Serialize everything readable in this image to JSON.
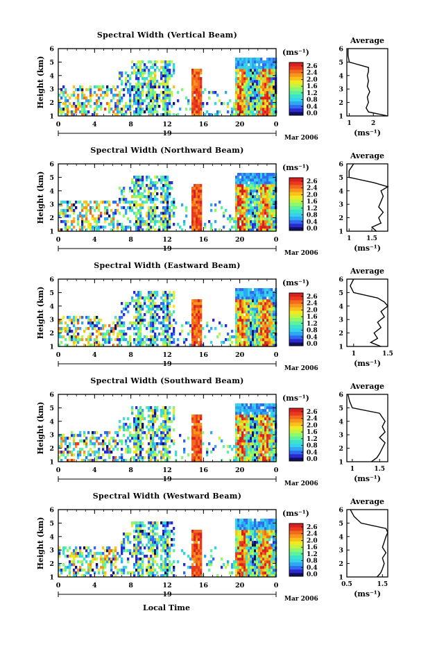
{
  "figure": {
    "xlabel": "Local Time",
    "colorbar": {
      "unit_label": "(ms⁻¹)",
      "ticks": [
        "2.6",
        "2.4",
        "2.0",
        "1.6",
        "1.2",
        "0.8",
        "0.4",
        "0.0"
      ],
      "colors": [
        "#101060",
        "#2a2ad0",
        "#2f6bf0",
        "#2ea7f4",
        "#35d2ea",
        "#3de3c6",
        "#5cf2a0",
        "#8ef76c",
        "#c3f443",
        "#f1ea22",
        "#f9c21b",
        "#f9951c",
        "#f46a1c",
        "#e9391f",
        "#d91f1f"
      ]
    },
    "average_title": "Average",
    "average_unit": "(ms⁻¹)"
  },
  "chart_data": [
    {
      "type": "heatmap",
      "title": "Spectral Width (Vertical Beam)",
      "ylabel": "Height (km)",
      "yticks": [
        "1",
        "2",
        "3",
        "4",
        "5",
        "6"
      ],
      "ylim": [
        1,
        6
      ],
      "xticks": [
        "0",
        "4",
        "8",
        "12",
        "16",
        "20",
        "0"
      ],
      "xlim": [
        0,
        24
      ],
      "date_label": "19",
      "date_suffix": "Mar 2006",
      "colorbar_ticks": [
        "2.6",
        "2.4",
        "2.0",
        "1.6",
        "1.2",
        "0.8",
        "0.4",
        "0.0"
      ],
      "colorbar_range": [
        0,
        2.6
      ],
      "average": {
        "title": "Average",
        "xlabel": "(ms⁻¹)",
        "xticks": [
          1,
          2
        ],
        "xlim": [
          0.9,
          2.6
        ],
        "heights": [
          1.0,
          1.3,
          1.6,
          2.0,
          2.4,
          2.8,
          3.2,
          3.6,
          4.0,
          4.3,
          4.6,
          5.0,
          5.5,
          6.0
        ],
        "values": [
          2.6,
          1.8,
          1.7,
          1.8,
          1.75,
          1.85,
          1.75,
          1.8,
          1.75,
          1.8,
          1.8,
          1.0,
          0.95,
          0.95
        ]
      }
    },
    {
      "type": "heatmap",
      "title": "Spectral Width (Northward Beam)",
      "ylabel": "Height (km)",
      "yticks": [
        "1",
        "2",
        "3",
        "4",
        "5",
        "6"
      ],
      "ylim": [
        1,
        6
      ],
      "xticks": [
        "0",
        "4",
        "8",
        "12",
        "16",
        "20",
        "0"
      ],
      "xlim": [
        0,
        24
      ],
      "date_label": "19",
      "date_suffix": "Mar 2006",
      "colorbar_ticks": [
        "2.6",
        "2.4",
        "2.0",
        "1.6",
        "1.2",
        "0.8",
        "0.4",
        "0.0"
      ],
      "colorbar_range": [
        0,
        2.6
      ],
      "average": {
        "title": "Average",
        "xlabel": "(ms⁻¹)",
        "xticks": [
          1.0,
          1.5
        ],
        "xlim": [
          0.95,
          1.85
        ],
        "heights": [
          1.0,
          1.3,
          1.6,
          2.0,
          2.4,
          2.8,
          3.2,
          3.6,
          4.0,
          4.3,
          4.6,
          5.0,
          5.5,
          6.0
        ],
        "values": [
          1.6,
          1.5,
          1.7,
          1.65,
          1.75,
          1.65,
          1.7,
          1.75,
          1.7,
          1.85,
          1.55,
          1.0,
          1.0,
          1.1
        ]
      }
    },
    {
      "type": "heatmap",
      "title": "Spectral Width (Eastward Beam)",
      "ylabel": "Height (km)",
      "yticks": [
        "1",
        "2",
        "3",
        "4",
        "5",
        "6"
      ],
      "ylim": [
        1,
        6
      ],
      "xticks": [
        "0",
        "4",
        "8",
        "12",
        "16",
        "20",
        "0"
      ],
      "xlim": [
        0,
        24
      ],
      "date_label": "19",
      "date_suffix": "Mar 2006",
      "colorbar_ticks": [
        "2.6",
        "2.4",
        "2.0",
        "1.6",
        "1.2",
        "0.8",
        "0.4",
        "0.0"
      ],
      "colorbar_range": [
        0,
        2.6
      ],
      "average": {
        "title": "Average",
        "xlabel": "(ms⁻¹)",
        "xticks": [
          1.0,
          1.5
        ],
        "xlim": [
          0.9,
          1.5
        ],
        "heights": [
          1.0,
          1.3,
          1.6,
          2.0,
          2.4,
          2.8,
          3.2,
          3.6,
          4.0,
          4.3,
          4.6,
          5.0,
          5.5,
          6.0
        ],
        "values": [
          1.4,
          1.25,
          1.35,
          1.3,
          1.4,
          1.35,
          1.45,
          1.4,
          1.5,
          1.45,
          1.35,
          1.0,
          0.95,
          1.0
        ]
      }
    },
    {
      "type": "heatmap",
      "title": "Spectral Width (Southward Beam)",
      "ylabel": "Height (km)",
      "yticks": [
        "1",
        "2",
        "3",
        "4",
        "5",
        "6"
      ],
      "ylim": [
        1,
        6
      ],
      "xticks": [
        "0",
        "4",
        "8",
        "12",
        "16",
        "20",
        "0"
      ],
      "xlim": [
        0,
        24
      ],
      "date_label": "19",
      "date_suffix": "Mar 2006",
      "colorbar_ticks": [
        "2.6",
        "2.4",
        "2.0",
        "1.6",
        "1.2",
        "0.8",
        "0.4",
        "0.0"
      ],
      "colorbar_range": [
        0,
        2.6
      ],
      "average": {
        "title": "Average",
        "xlabel": "(ms⁻¹)",
        "xticks": [
          1.0,
          1.5
        ],
        "xlim": [
          0.9,
          1.65
        ],
        "heights": [
          1.0,
          1.3,
          1.6,
          2.0,
          2.4,
          2.8,
          3.2,
          3.6,
          4.0,
          4.3,
          4.6,
          5.0,
          5.5,
          6.0
        ],
        "values": [
          1.35,
          1.45,
          1.5,
          1.55,
          1.6,
          1.5,
          1.6,
          1.55,
          1.6,
          1.55,
          1.5,
          1.0,
          0.95,
          0.92
        ]
      }
    },
    {
      "type": "heatmap",
      "title": "Spectral Width (Westward Beam)",
      "ylabel": "Height (km)",
      "yticks": [
        "1",
        "2",
        "3",
        "4",
        "5",
        "6"
      ],
      "ylim": [
        1,
        6
      ],
      "xticks": [
        "0",
        "4",
        "8",
        "12",
        "16",
        "20",
        "0"
      ],
      "xlim": [
        0,
        24
      ],
      "date_label": "19",
      "date_suffix": "Mar 2006",
      "colorbar_ticks": [
        "2.6",
        "2.4",
        "2.0",
        "1.6",
        "1.2",
        "0.8",
        "0.4",
        "0.0"
      ],
      "colorbar_range": [
        0,
        2.6
      ],
      "average": {
        "title": "Average",
        "xlabel": "(ms⁻¹)",
        "xticks": [
          0.5,
          1.5
        ],
        "xlim": [
          0.5,
          1.65
        ],
        "heights": [
          1.0,
          1.3,
          1.6,
          2.0,
          2.4,
          2.8,
          3.2,
          3.6,
          4.0,
          4.3,
          4.6,
          5.0,
          5.5,
          6.0
        ],
        "values": [
          1.35,
          1.45,
          1.5,
          1.55,
          1.5,
          1.6,
          1.5,
          1.55,
          1.6,
          1.65,
          1.6,
          0.9,
          0.7,
          0.6
        ]
      }
    }
  ]
}
